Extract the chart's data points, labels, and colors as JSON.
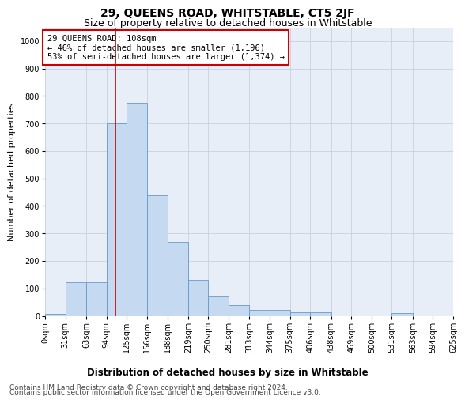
{
  "title": "29, QUEENS ROAD, WHITSTABLE, CT5 2JF",
  "subtitle": "Size of property relative to detached houses in Whitstable",
  "xlabel": "Distribution of detached houses by size in Whitstable",
  "ylabel": "Number of detached properties",
  "footer_line1": "Contains HM Land Registry data © Crown copyright and database right 2024.",
  "footer_line2": "Contains public sector information licensed under the Open Government Licence v3.0.",
  "property_line_label": "29 QUEENS ROAD: 108sqm",
  "annotation_line1": "← 46% of detached houses are smaller (1,196)",
  "annotation_line2": "53% of semi-detached houses are larger (1,374) →",
  "bar_edges": [
    0,
    31,
    63,
    94,
    125,
    156,
    188,
    219,
    250,
    281,
    313,
    344,
    375,
    406,
    438,
    469,
    500,
    531,
    563,
    594,
    625
  ],
  "bar_heights": [
    8,
    122,
    122,
    700,
    775,
    438,
    270,
    130,
    70,
    38,
    22,
    22,
    12,
    12,
    0,
    0,
    0,
    10,
    0,
    0
  ],
  "bar_color": "#c5d9f0",
  "bar_edge_color": "#6699cc",
  "vline_x": 108,
  "vline_color": "#cc0000",
  "annotation_box_color": "#cc0000",
  "ylim": [
    0,
    1050
  ],
  "yticks": [
    0,
    100,
    200,
    300,
    400,
    500,
    600,
    700,
    800,
    900,
    1000
  ],
  "grid_color": "#c8d0de",
  "bg_color": "#e8eef8",
  "title_fontsize": 10,
  "subtitle_fontsize": 9,
  "xlabel_fontsize": 8.5,
  "ylabel_fontsize": 8,
  "tick_fontsize": 7,
  "annotation_fontsize": 7.5,
  "footer_fontsize": 6.5
}
